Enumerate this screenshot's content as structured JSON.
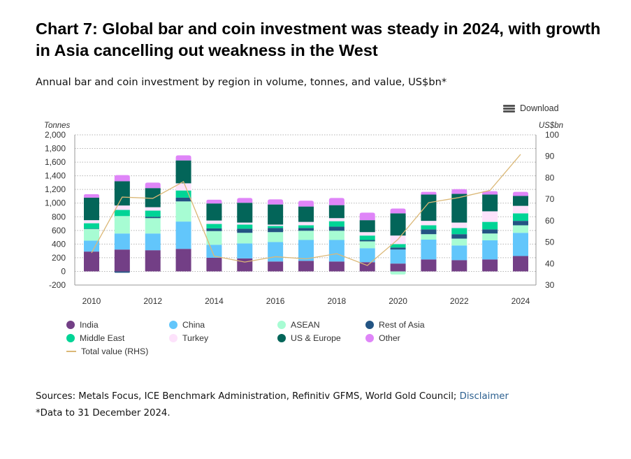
{
  "header": {
    "title": "Chart 7: Global bar and coin investment was steady in 2024, with growth in Asia cancelling out weakness in the West",
    "subtitle": "Annual bar and coin investment by region in volume, tonnes, and value, US$bn*",
    "download_label": "Download",
    "download_icon": "menu-icon"
  },
  "footer": {
    "sources": "Sources: Metals Focus, ICE Benchmark Administration, Refinitiv GFMS, World Gold Council; ",
    "disclaimer_link": "Disclaimer",
    "note": "*Data to 31 December 2024."
  },
  "colors": {
    "India": "#733f86",
    "China": "#62c6fb",
    "ASEAN": "#a7fcd3",
    "Rest of Asia": "#235483",
    "Middle East": "#00d496",
    "Turkey": "#fde2fb",
    "US & Europe": "#036559",
    "Other": "#df85f8",
    "Total value (RHS)": "#dbb877"
  },
  "chart_data": {
    "type": "bar",
    "stacked": true,
    "title": "Chart 7: Global bar and coin investment was steady in 2024, with growth in Asia cancelling out weakness in the West",
    "subtitle": "Annual bar and coin investment by region in volume, tonnes, and value, US$bn*",
    "xlabel": "",
    "ylabel": "Tonnes",
    "y2label": "US$bn",
    "ylim": [
      -200,
      2000
    ],
    "y2lim": [
      30,
      100
    ],
    "yticks": [
      "-200",
      "0",
      "200",
      "400",
      "600",
      "800",
      "1,000",
      "1,200",
      "1,400",
      "1,600",
      "1,800",
      "2,000"
    ],
    "y2ticks": [
      "30",
      "40",
      "50",
      "60",
      "70",
      "80",
      "90",
      "100"
    ],
    "xtick_labels": [
      "2010",
      "2012",
      "2014",
      "2016",
      "2018",
      "2020",
      "2022",
      "2024"
    ],
    "grid": true,
    "legend_position": "bottom",
    "categories": [
      "2010",
      "2011",
      "2012",
      "2013",
      "2014",
      "2015",
      "2016",
      "2017",
      "2018",
      "2019",
      "2020",
      "2021",
      "2022",
      "2023",
      "2024"
    ],
    "series": [
      {
        "name": "India",
        "type": "bar",
        "values": [
          290,
          320,
          310,
          330,
          200,
          190,
          145,
          155,
          145,
          135,
          115,
          175,
          165,
          175,
          225
        ]
      },
      {
        "name": "China",
        "type": "bar",
        "values": [
          160,
          235,
          245,
          400,
          190,
          220,
          285,
          305,
          315,
          205,
          205,
          290,
          215,
          280,
          340
        ]
      },
      {
        "name": "ASEAN",
        "type": "bar",
        "values": [
          170,
          255,
          225,
          295,
          200,
          155,
          145,
          135,
          135,
          100,
          -45,
          80,
          100,
          100,
          110
        ]
      },
      {
        "name": "Rest of Asia",
        "type": "bar",
        "values": [
          5,
          -20,
          20,
          55,
          40,
          60,
          60,
          40,
          60,
          20,
          30,
          70,
          65,
          60,
          65
        ]
      },
      {
        "name": "Middle East",
        "type": "bar",
        "values": [
          80,
          90,
          90,
          105,
          65,
          60,
          30,
          40,
          80,
          65,
          50,
          60,
          90,
          110,
          110
        ]
      },
      {
        "name": "Turkey",
        "type": "bar",
        "values": [
          45,
          65,
          50,
          105,
          50,
          30,
          20,
          50,
          45,
          50,
          125,
          65,
          80,
          155,
          110
        ]
      },
      {
        "name": "US & Europe",
        "type": "bar",
        "values": [
          330,
          355,
          280,
          335,
          250,
          290,
          295,
          225,
          190,
          175,
          325,
          385,
          420,
          245,
          145
        ]
      },
      {
        "name": "Other",
        "type": "bar",
        "values": [
          50,
          90,
          80,
          75,
          55,
          70,
          75,
          85,
          105,
          110,
          70,
          40,
          70,
          50,
          60
        ]
      },
      {
        "name": "Total value (RHS)",
        "type": "line",
        "axis": "right",
        "values": [
          45.0,
          71.0,
          70.4,
          78.2,
          43.5,
          40.7,
          43.2,
          42.2,
          44.6,
          39.1,
          51.3,
          68.4,
          70.8,
          74.1,
          90.9
        ]
      }
    ]
  }
}
